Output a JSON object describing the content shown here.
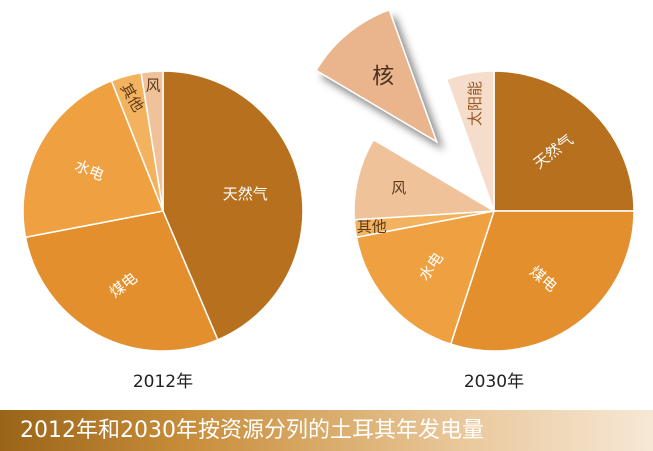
{
  "caption": "2012年和2030年按资源分列的土耳其年发电量",
  "chart_data": [
    {
      "type": "pie",
      "title": "2012年",
      "slices": [
        {
          "label": "天然气",
          "value": 43.6,
          "color": "#b7701e"
        },
        {
          "label": "煤电",
          "value": 28.4,
          "color": "#e38f2e"
        },
        {
          "label": "水电",
          "value": 22.0,
          "color": "#efa040"
        },
        {
          "label": "其他",
          "value": 3.5,
          "color": "#f3b25e"
        },
        {
          "label": "风",
          "value": 2.5,
          "color": "#f0c29a"
        }
      ]
    },
    {
      "type": "pie",
      "title": "2030年",
      "slices": [
        {
          "label": "天然气",
          "value": 25.0,
          "color": "#b7701e"
        },
        {
          "label": "煤电",
          "value": 30.0,
          "color": "#e38f2e"
        },
        {
          "label": "水电",
          "value": 17.0,
          "color": "#efa040"
        },
        {
          "label": "其他",
          "value": 2.0,
          "color": "#f3b25e"
        },
        {
          "label": "风",
          "value": 9.5,
          "color": "#f0c29a"
        },
        {
          "label": "核",
          "value": 11.0,
          "color": "#eab48c",
          "exploded": true
        },
        {
          "label": "太阳能",
          "value": 5.5,
          "color": "#f6dccb"
        }
      ]
    }
  ]
}
